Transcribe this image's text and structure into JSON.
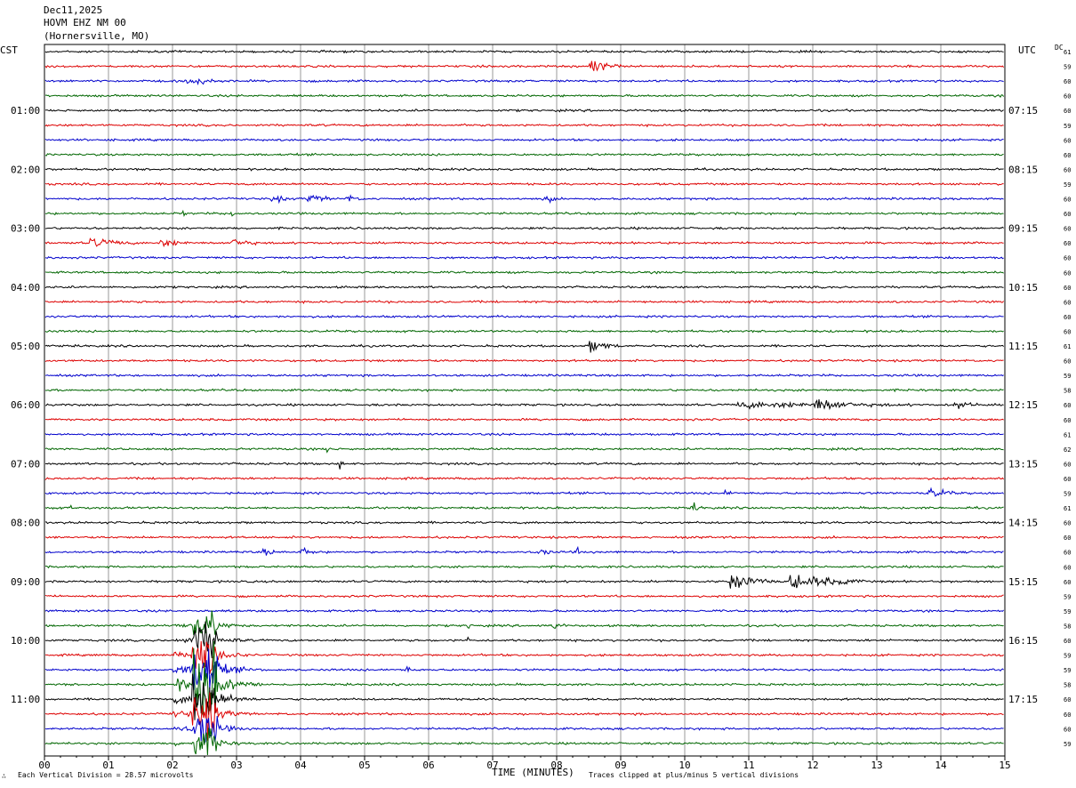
{
  "header": {
    "date": "Dec11,2025",
    "station": "HOVM EHZ NM 00",
    "location": "(Hornersville, MO)"
  },
  "left_tz": "CST",
  "right_tz": "UTC",
  "dc_label": "DC",
  "footer": {
    "scale_note": "Each Vertical Division =   28.57 microvolts",
    "clip_note": "Traces clipped at plus/minus 5 vertical divisions",
    "corner_mark": "∴"
  },
  "colors": {
    "trace_cycle": [
      "#000000",
      "#dd0000",
      "#0000cc",
      "#006600"
    ],
    "grid": "#999999",
    "frame": "#000000"
  },
  "chart_data": {
    "type": "line",
    "subtype": "helicorder",
    "xlabel": "TIME (MINUTES)",
    "x_ticks": [
      "00",
      "01",
      "02",
      "03",
      "04",
      "05",
      "06",
      "07",
      "08",
      "09",
      "10",
      "11",
      "12",
      "13",
      "14",
      "15"
    ],
    "xlim": [
      0,
      15
    ],
    "trace_count": 48,
    "minutes_per_trace": 15,
    "left_time_labels": [
      {
        "trace": 4,
        "label": "01:00"
      },
      {
        "trace": 8,
        "label": "02:00"
      },
      {
        "trace": 12,
        "label": "03:00"
      },
      {
        "trace": 16,
        "label": "04:00"
      },
      {
        "trace": 20,
        "label": "05:00"
      },
      {
        "trace": 24,
        "label": "06:00"
      },
      {
        "trace": 28,
        "label": "07:00"
      },
      {
        "trace": 32,
        "label": "08:00"
      },
      {
        "trace": 36,
        "label": "09:00"
      },
      {
        "trace": 40,
        "label": "10:00"
      },
      {
        "trace": 44,
        "label": "11:00"
      }
    ],
    "right_time_labels": [
      {
        "trace": 4,
        "label": "07:15"
      },
      {
        "trace": 8,
        "label": "08:15"
      },
      {
        "trace": 12,
        "label": "09:15"
      },
      {
        "trace": 16,
        "label": "10:15"
      },
      {
        "trace": 20,
        "label": "11:15"
      },
      {
        "trace": 24,
        "label": "12:15"
      },
      {
        "trace": 28,
        "label": "13:15"
      },
      {
        "trace": 32,
        "label": "14:15"
      },
      {
        "trace": 36,
        "label": "15:15"
      },
      {
        "trace": 40,
        "label": "16:15"
      },
      {
        "trace": 44,
        "label": "17:15"
      }
    ],
    "dc_offsets": [
      "61",
      "59",
      "60",
      "60",
      "60",
      "59",
      "60",
      "60",
      "60",
      "59",
      "60",
      "60",
      "60",
      "60",
      "60",
      "60",
      "60",
      "60",
      "60",
      "60",
      "61",
      "60",
      "59",
      "58",
      "60",
      "60",
      "61",
      "62",
      "60",
      "60",
      "59",
      "61",
      "60",
      "60",
      "60",
      "60",
      "60",
      "59",
      "59",
      "58",
      "60",
      "59",
      "59",
      "58",
      "60",
      "60",
      "60",
      "59"
    ],
    "events": [
      {
        "trace": 1,
        "minute": 8.5,
        "amp": 9,
        "dur": 0.3
      },
      {
        "trace": 2,
        "minute": 2.2,
        "amp": 5,
        "dur": 0.5
      },
      {
        "trace": 13,
        "minute": 0.7,
        "amp": 6,
        "dur": 0.5
      },
      {
        "trace": 13,
        "minute": 1.8,
        "amp": 5,
        "dur": 0.4
      },
      {
        "trace": 13,
        "minute": 2.9,
        "amp": 6,
        "dur": 0.3
      },
      {
        "trace": 10,
        "minute": 3.5,
        "amp": 5,
        "dur": 0.3
      },
      {
        "trace": 10,
        "minute": 4.1,
        "amp": 6,
        "dur": 0.3
      },
      {
        "trace": 10,
        "minute": 4.7,
        "amp": 5,
        "dur": 0.2
      },
      {
        "trace": 10,
        "minute": 7.8,
        "amp": 10,
        "dur": 0.1
      },
      {
        "trace": 11,
        "minute": 2.15,
        "amp": 5,
        "dur": 0.05
      },
      {
        "trace": 11,
        "minute": 2.9,
        "amp": 9,
        "dur": 0.05
      },
      {
        "trace": 20,
        "minute": 8.5,
        "amp": 8,
        "dur": 0.3
      },
      {
        "trace": 24,
        "minute": 10.8,
        "amp": 4,
        "dur": 2.5
      },
      {
        "trace": 24,
        "minute": 12.0,
        "amp": 9,
        "dur": 0.5
      },
      {
        "trace": 24,
        "minute": 14.2,
        "amp": 6,
        "dur": 0.3
      },
      {
        "trace": 27,
        "minute": 4.4,
        "amp": 8,
        "dur": 0.05
      },
      {
        "trace": 28,
        "minute": 4.6,
        "amp": 8,
        "dur": 0.05
      },
      {
        "trace": 30,
        "minute": 13.8,
        "amp": 7,
        "dur": 0.3
      },
      {
        "trace": 30,
        "minute": 10.6,
        "amp": 4,
        "dur": 0.2
      },
      {
        "trace": 31,
        "minute": 10.1,
        "amp": 9,
        "dur": 0.1
      },
      {
        "trace": 31,
        "minute": 0.4,
        "amp": 6,
        "dur": 0.05
      },
      {
        "trace": 34,
        "minute": 3.4,
        "amp": 5,
        "dur": 0.2
      },
      {
        "trace": 34,
        "minute": 4.0,
        "amp": 6,
        "dur": 0.2
      },
      {
        "trace": 34,
        "minute": 7.7,
        "amp": 5,
        "dur": 0.2
      },
      {
        "trace": 34,
        "minute": 8.3,
        "amp": 9,
        "dur": 0.05
      },
      {
        "trace": 36,
        "minute": 10.7,
        "amp": 16,
        "dur": 0.3
      },
      {
        "trace": 36,
        "minute": 11.6,
        "amp": 9,
        "dur": 0.8
      },
      {
        "trace": 36,
        "minute": 12.6,
        "amp": 6,
        "dur": 0.1
      },
      {
        "trace": 39,
        "minute": 3.8,
        "amp": 6,
        "dur": 0.05
      },
      {
        "trace": 39,
        "minute": 6.6,
        "amp": 5,
        "dur": 0.1
      },
      {
        "trace": 39,
        "minute": 7.9,
        "amp": 5,
        "dur": 0.2
      },
      {
        "trace": 40,
        "minute": 6.6,
        "amp": 5,
        "dur": 0.05
      },
      {
        "trace": 42,
        "minute": 5.6,
        "amp": 7,
        "dur": 0.1
      }
    ],
    "clipped_event": {
      "trace_start": 39,
      "trace_end": 47,
      "minute_start": 2.3,
      "minute_end": 2.7,
      "peak_trace": 43
    }
  }
}
